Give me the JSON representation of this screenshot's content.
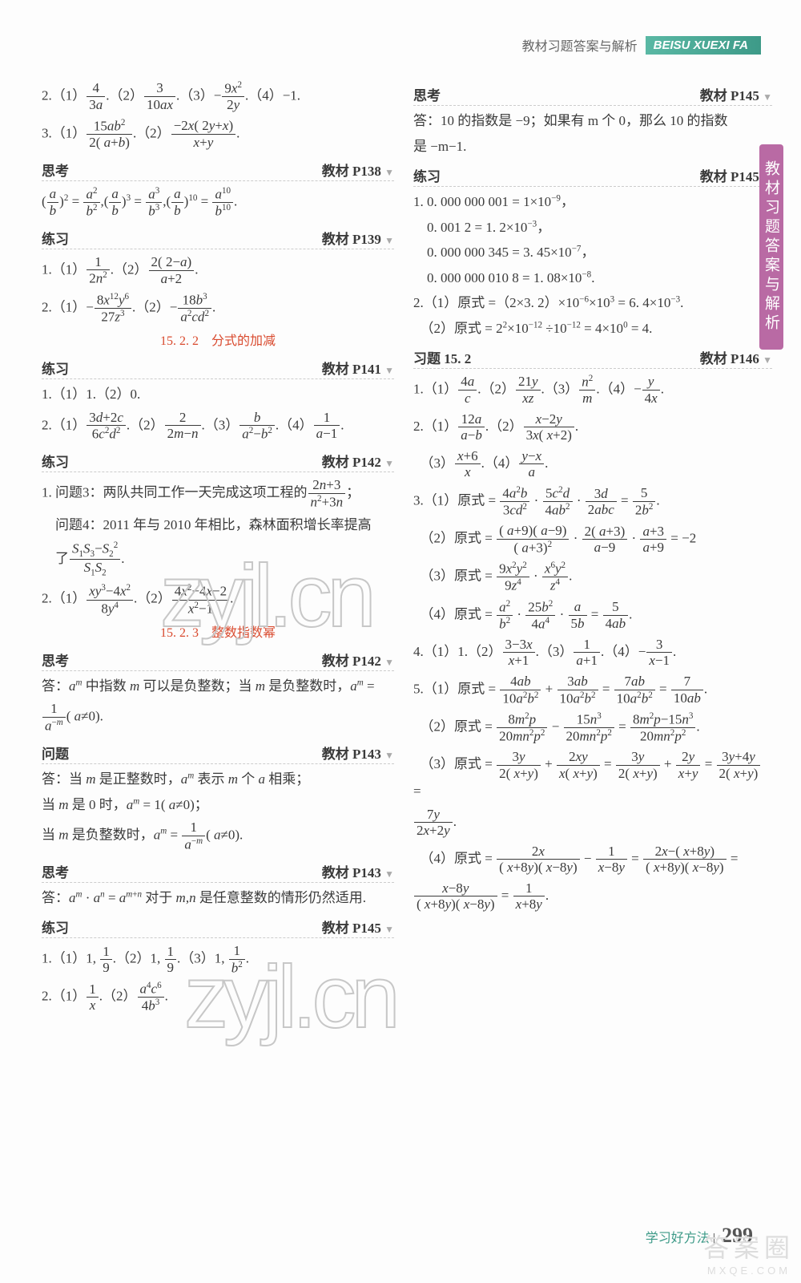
{
  "header": {
    "cn": "教材习题答案与解析",
    "badge": "BEISU XUEXI FA"
  },
  "sidebar_label": "教材习题答案与解析",
  "footer": {
    "text": "学习好方法",
    "page": "299"
  },
  "corner_wm": {
    "big": "答案圈",
    "small": "MXQE.COM"
  },
  "left_col": {
    "l1": "2.（1）4/3a .（2）3/10ax .（3）− 9x²/2y .（4）−1.",
    "l2": "3.（1）15ab²/2(a+b) .（2）−2x(2y+x)/(x+y) .",
    "sec1_l": "思考",
    "sec1_r": "教材 P138",
    "l3": "( a/b )² = a²/b² , ( a/b )³ = a³/b³ , ( a/b )¹⁰ = a¹⁰/b¹⁰ .",
    "sec2_l": "练习",
    "sec2_r": "教材 P139",
    "l4": "1.（1）1/2n² .（2）2(2−a)/(a+2) .",
    "l5": "2.（1）− 8x¹²y⁶/27z³ .（2）− 18b³/a²cd² .",
    "sub1": "15. 2. 2　分式的加减",
    "sec3_l": "练习",
    "sec3_r": "教材 P141",
    "l6": "1.（1）1.（2）0.",
    "l7": "2.（1）(3d+2c)/6c²d² .（2）2/(2m−n) .（3）b/(a²−b²) .（4）1/(a−1) .",
    "sec4_l": "练习",
    "sec4_r": "教材 P142",
    "l8": "1. 问题3：两队共同工作一天完成这项工程的 (2n+3)/(n²+3n) ；",
    "l9": "　问题4：2011 年与 2010 年相比，森林面积增长率提高",
    "l10": "　了 (S₁S₃−S₂²)/(S₁S₂) .",
    "l11": "2.（1）(xy³−4x²)/8y⁴ .（2）(4x²−4x−2)/(x²−1) .",
    "sub2": "15. 2. 3　整数指数幂",
    "sec5_l": "思考",
    "sec5_r": "教材 P142",
    "l12": "答：aᵐ 中指数 m 可以是负整数；当 m 是负整数时，aᵐ =",
    "l13": "1/a⁻ᵐ ( a≠0 ).",
    "sec6_l": "问题",
    "sec6_r": "教材 P143",
    "l14": "答：当 m 是正整数时，aᵐ 表示 m 个 a 相乘；",
    "l15": "当 m 是 0 时，aᵐ = 1( a≠0 )；",
    "l16": "当 m 是负整数时，aᵐ = 1/a⁻ᵐ ( a≠0 ).",
    "sec7_l": "思考",
    "sec7_r": "教材 P143",
    "l17": "答：aᵐ · aⁿ = aᵐ⁺ⁿ 对于 m,n 是任意整数的情形仍然适用.",
    "sec8_l": "练习",
    "sec8_r": "教材 P145",
    "l18": "1.（1）1, 1/9 .（2）1, 1/9 .（3）1, 1/b² .",
    "l19": "2.（1）1/x .（2）a⁴c⁶/4b³ ."
  },
  "right_col": {
    "sec1_l": "思考",
    "sec1_r": "教材 P145",
    "r1": "答：10 的指数是 −9；如果有 m 个 0，那么 10 的指数",
    "r2": "是 −m−1.",
    "sec2_l": "练习",
    "sec2_r": "教材 P145",
    "r3": "1. 0. 000 000 001 = 1×10⁻⁹，",
    "r4": "　0. 001 2 = 1. 2×10⁻³，",
    "r5": "　0. 000 000 345 = 3. 45×10⁻⁷，",
    "r6": "　0. 000 000 010 8 = 1. 08×10⁻⁸.",
    "r7": "2.（1）原式 =（2×3. 2）×10⁻⁶×10³ = 6. 4×10⁻³.",
    "r8": "　（2）原式 = 2²×10⁻¹² ÷10⁻¹² = 4×10⁰ = 4.",
    "sec3_l": "习题 15. 2",
    "sec3_r": "教材 P146",
    "r9": "1.（1）4a/c .（2）21y/xz .（3）n²/m .（4）− y/4x .",
    "r10": "2.（1）12a/(a−b) .（2）(x−2y)/3x(x+2) .",
    "r11": "　（3）(x+6)/x .（4）(y−x)/a .",
    "r12": "3.（1）原式 = 4a²b/3cd² · 5c²d/4ab² · 3d/2abc = 5/2b² .",
    "r13": "　（2）原式 = (a+9)(a−9)/(a+3)² · 2(a+3)/(a−9) · (a+3)/(a+9) = −2",
    "r14": "　（3）原式 = 9x²y²/9z⁴ · x⁶y²/z⁴ .",
    "r15": "　（4）原式 = a²/b² · 25b²/4a⁴ · a/5b = 5/4ab .",
    "r16": "4.（1）1.（2）(3−3x)/(x+1) .（3）1/(a+1) .（4）− 3/(x−1) .",
    "r17": "5.（1）原式 = 4ab/10a²b² + 3ab/10a²b² = 7ab/10a²b² = 7/10ab .",
    "r18": "　（2）原式 = 8m²p/20mn²p² − 15n³/20mn²p² = (8m²p−15n³)/20mn²p² .",
    "r19": "　（3）原式 = 3y/2(x+y) + 2xy/x(x+y) = 3y/2(x+y) + 2y/(x+y) = (3y+4y)/2(x+y) =",
    "r20": "7y/(2x+2y) .",
    "r21": "　（4）原式 = 2x/(x+8y)(x−8y) − 1/(x−8y) = (2x−(x+8y))/(x+8y)(x−8y) =",
    "r22": "(x−8y)/(x+8y)(x−8y) = 1/(x+8y) ."
  }
}
